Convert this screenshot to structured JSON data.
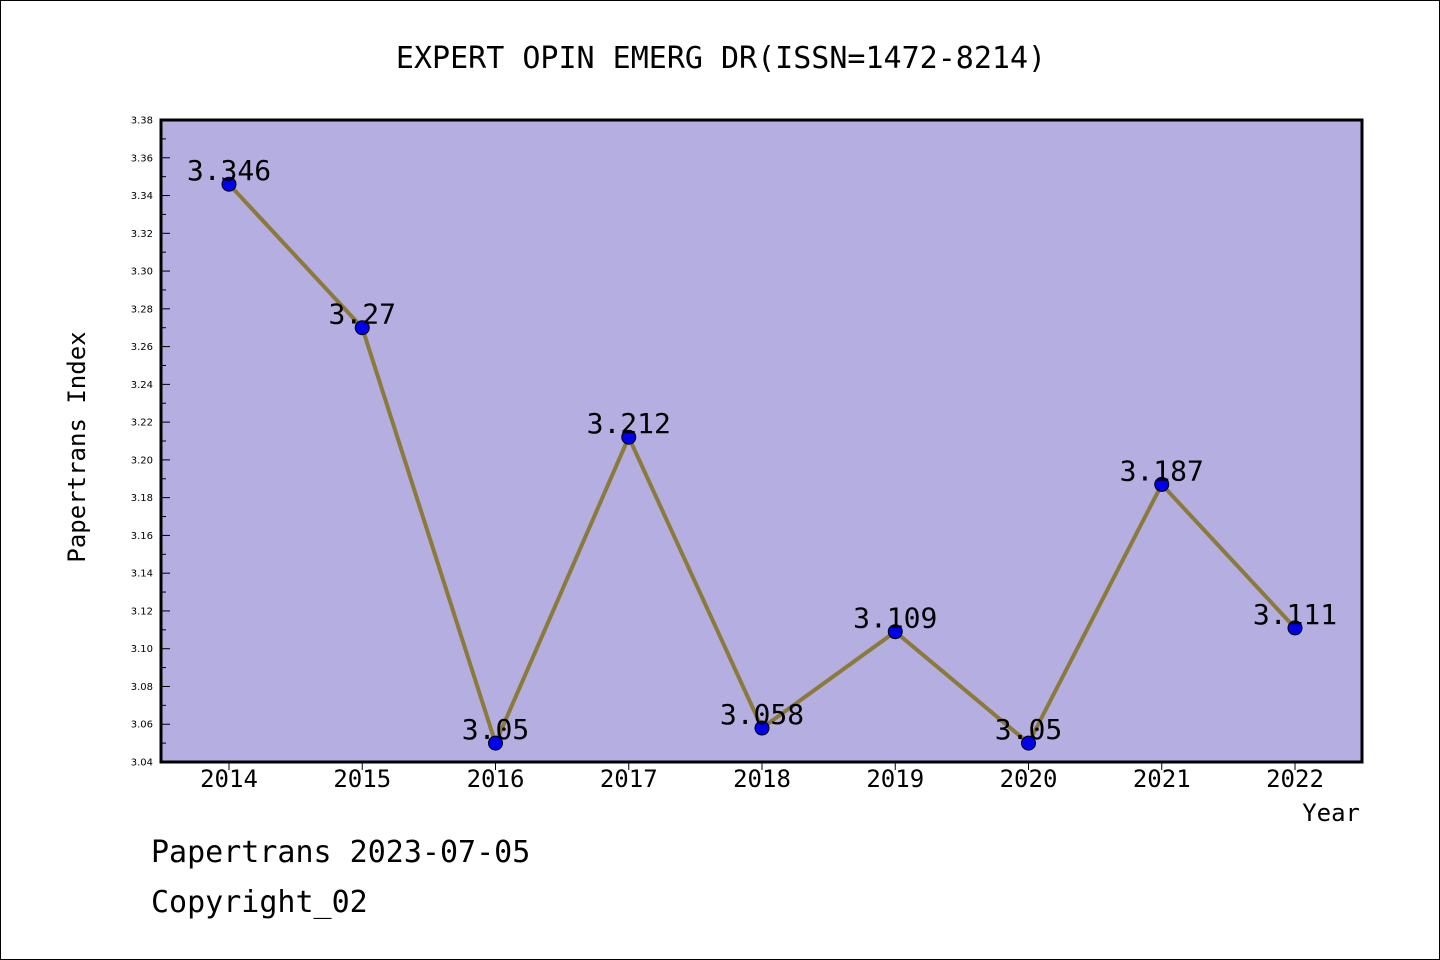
{
  "chart_data": {
    "type": "line",
    "title": "EXPERT OPIN EMERG DR(ISSN=1472-8214)",
    "xlabel": "Year",
    "ylabel": "Papertrans Index",
    "categories": [
      "2014",
      "2015",
      "2016",
      "2017",
      "2018",
      "2019",
      "2020",
      "2021",
      "2022"
    ],
    "values": [
      3.346,
      3.27,
      3.05,
      3.212,
      3.058,
      3.109,
      3.05,
      3.187,
      3.111
    ],
    "data_labels": [
      "3.346",
      "3.27",
      "3.05",
      "3.212",
      "3.058",
      "3.109",
      "3.05",
      "3.187",
      "3.111"
    ],
    "ylim": [
      3.04,
      3.38
    ],
    "yticks": [
      "3.04",
      "3.06",
      "3.08",
      "3.10",
      "3.12",
      "3.14",
      "3.16",
      "3.18",
      "3.20",
      "3.22",
      "3.24",
      "3.26",
      "3.28",
      "3.30",
      "3.32",
      "3.34",
      "3.36",
      "3.38"
    ],
    "grid": false,
    "legend": "none",
    "colors": {
      "plot_background": "#b4aee1",
      "line": "#8b7a3a",
      "marker": "#0000ee"
    }
  },
  "footer": {
    "date_line": "Papertrans 2023-07-05",
    "copyright_line": "Copyright_02"
  }
}
